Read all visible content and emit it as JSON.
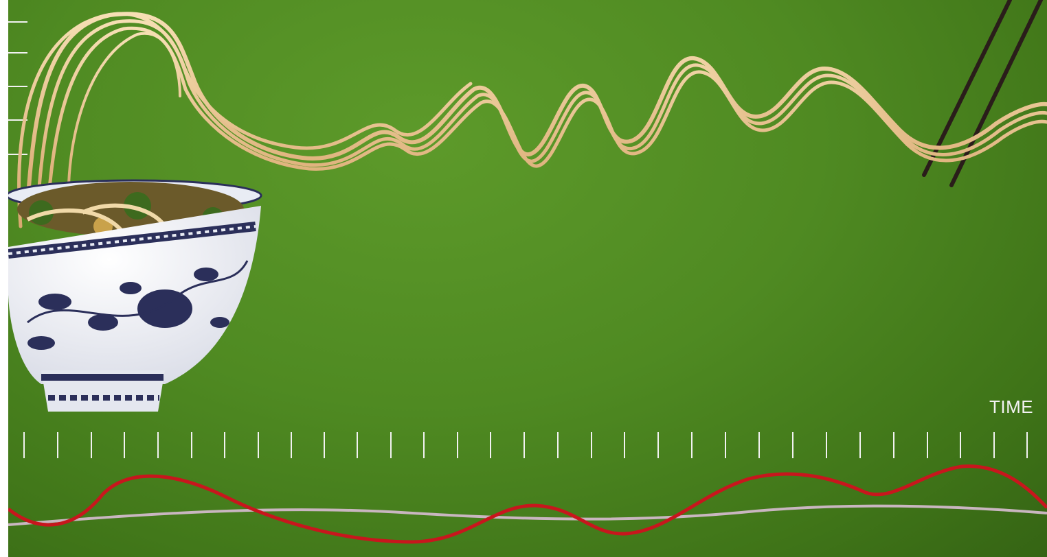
{
  "axis": {
    "x_label": "TIME"
  },
  "colors": {
    "background": "#4f8a22",
    "noodle": "#e8c48f",
    "chopsticks": "#2a1d1a",
    "red_line": "#c8161d",
    "grey_line": "#c9b6c0",
    "bowl_pattern": "#2b2f5a"
  }
}
